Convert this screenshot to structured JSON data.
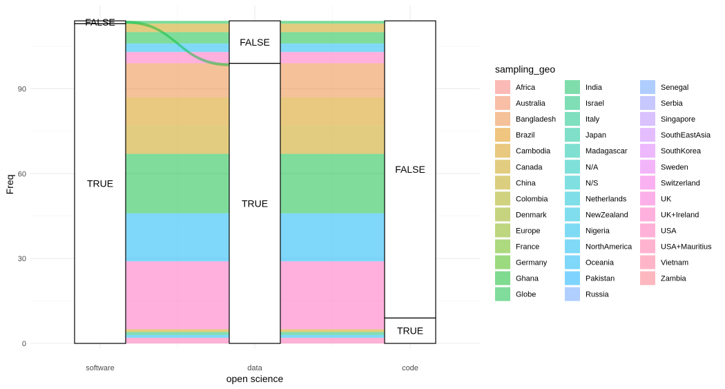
{
  "chart_data": {
    "type": "alluvial",
    "xlabel": "open science",
    "ylabel": "Freq",
    "axes": [
      "software",
      "data",
      "code"
    ],
    "ylim": [
      0,
      114
    ],
    "yticks": [
      0,
      30,
      60,
      90
    ],
    "grid": true,
    "total": 114,
    "strata": [
      {
        "axis": "software",
        "items": [
          {
            "label": "TRUE",
            "value": 113
          },
          {
            "label": "FALSE",
            "value": 1
          }
        ]
      },
      {
        "axis": "data",
        "items": [
          {
            "label": "TRUE",
            "value": 99
          },
          {
            "label": "FALSE",
            "value": 15
          }
        ]
      },
      {
        "axis": "code",
        "items": [
          {
            "label": "TRUE",
            "value": 9
          },
          {
            "label": "FALSE",
            "value": 105
          }
        ]
      }
    ],
    "legend": {
      "title": "sampling_geo",
      "placement": "right",
      "columns": 3,
      "entries": [
        {
          "name": "Africa",
          "color": "#F8766D"
        },
        {
          "name": "Australia",
          "color": "#F17D4E"
        },
        {
          "name": "Bangladesh",
          "color": "#EA8331"
        },
        {
          "name": "Brazil",
          "color": "#E08B00"
        },
        {
          "name": "Cambodia",
          "color": "#D39200"
        },
        {
          "name": "Canada",
          "color": "#C59900"
        },
        {
          "name": "China",
          "color": "#B79F00"
        },
        {
          "name": "Colombia",
          "color": "#A3A500"
        },
        {
          "name": "Denmark",
          "color": "#8FAA00"
        },
        {
          "name": "Europe",
          "color": "#7CAE00"
        },
        {
          "name": "France",
          "color": "#5BB300"
        },
        {
          "name": "Germany",
          "color": "#39B600"
        },
        {
          "name": "Ghana",
          "color": "#00B81F"
        },
        {
          "name": "Globe",
          "color": "#00BA38"
        },
        {
          "name": "India",
          "color": "#00BC59"
        },
        {
          "name": "Israel",
          "color": "#00BE6C"
        },
        {
          "name": "Italy",
          "color": "#00C07F"
        },
        {
          "name": "Japan",
          "color": "#00C092"
        },
        {
          "name": "Madagascar",
          "color": "#00C1A3"
        },
        {
          "name": "N/A",
          "color": "#00C1B3"
        },
        {
          "name": "N/S",
          "color": "#00BFC4"
        },
        {
          "name": "Netherlands",
          "color": "#00BDD2"
        },
        {
          "name": "NewZealand",
          "color": "#00BBDC"
        },
        {
          "name": "Nigeria",
          "color": "#00B7E8"
        },
        {
          "name": "NorthAmerica",
          "color": "#00B4F0"
        },
        {
          "name": "Oceania",
          "color": "#00B0F6"
        },
        {
          "name": "Pakistan",
          "color": "#00A9FF"
        },
        {
          "name": "Russia",
          "color": "#61A0FF"
        },
        {
          "name": "Senegal",
          "color": "#619CFF"
        },
        {
          "name": "Serbia",
          "color": "#8F91FF"
        },
        {
          "name": "Singapore",
          "color": "#B385FF"
        },
        {
          "name": "SouthEastAsia",
          "color": "#C77CFF"
        },
        {
          "name": "SouthKorea",
          "color": "#DB72FB"
        },
        {
          "name": "Sweden",
          "color": "#E76BF3"
        },
        {
          "name": "Switzerland",
          "color": "#F564E3"
        },
        {
          "name": "UK",
          "color": "#FA62D4"
        },
        {
          "name": "UK+Ireland",
          "color": "#FF62BC"
        },
        {
          "name": "USA",
          "color": "#FF64B0"
        },
        {
          "name": "USA+Mauritius",
          "color": "#FF689F"
        },
        {
          "name": "Vietnam",
          "color": "#FF6C91"
        },
        {
          "name": "Zambia",
          "color": "#FC717F"
        }
      ]
    },
    "flow_bands": [
      {
        "color": "#FF64B0",
        "value": 2
      },
      {
        "color": "#00B4F0",
        "value": 1
      },
      {
        "color": "#00BE6C",
        "value": 1
      },
      {
        "color": "#C59900",
        "value": 1
      },
      {
        "color": "#FF62BC",
        "value": 24
      },
      {
        "color": "#00B0F6",
        "value": 17
      },
      {
        "color": "#00BA38",
        "value": 21
      },
      {
        "color": "#C59900",
        "value": 10
      },
      {
        "color": "#D39200",
        "value": 10
      },
      {
        "color": "#EA8331",
        "value": 12
      },
      {
        "color": "#FF62BC",
        "value": 4
      },
      {
        "color": "#00B4F0",
        "value": 3
      },
      {
        "color": "#00BA38",
        "value": 4
      },
      {
        "color": "#C59900",
        "value": 3
      },
      {
        "color": "#00BA38",
        "value": 1
      }
    ]
  }
}
